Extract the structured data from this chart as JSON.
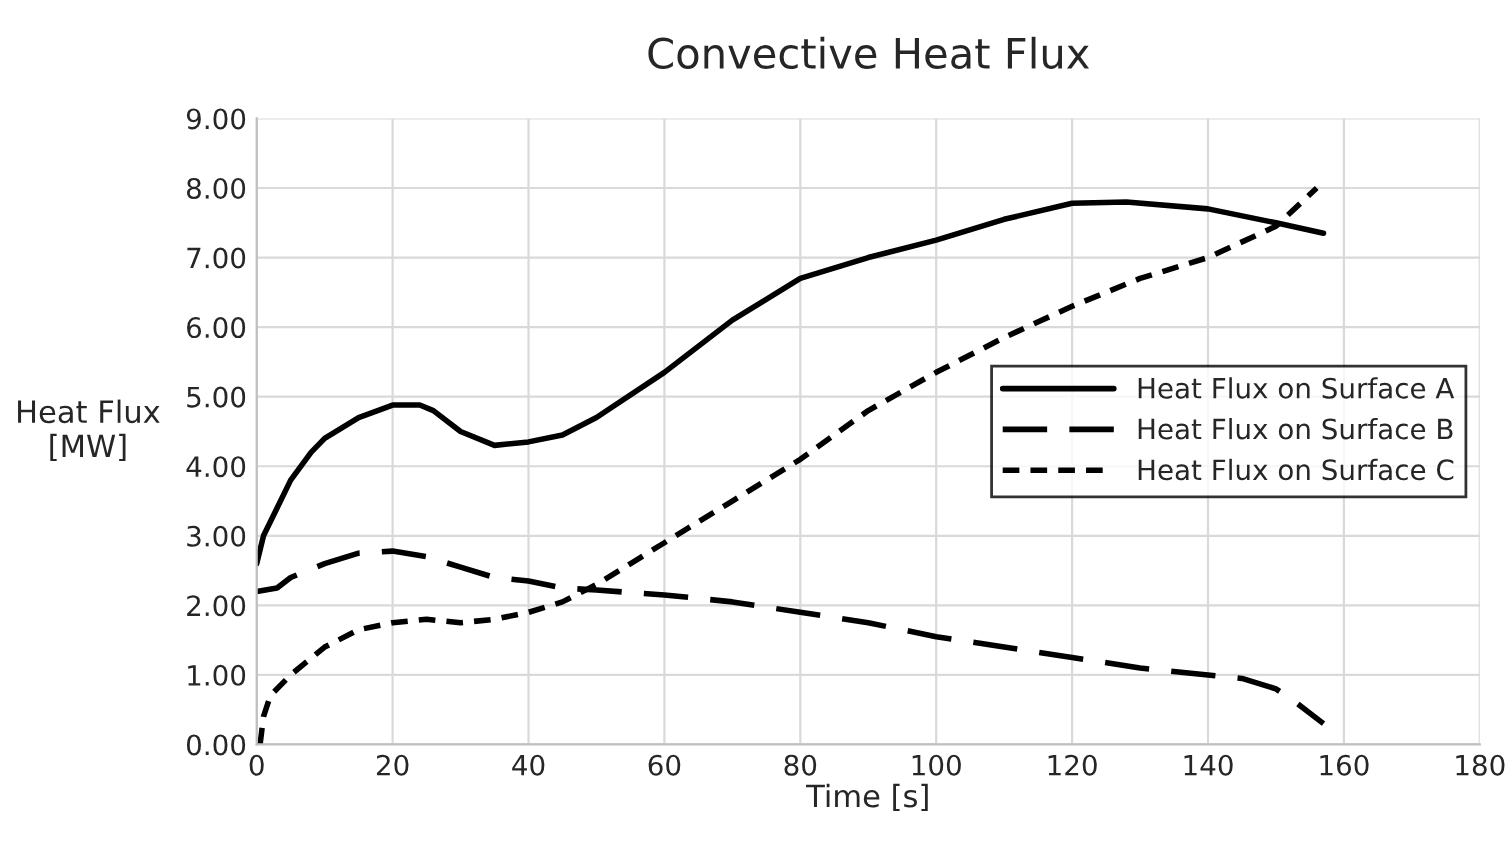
{
  "chart_data": {
    "type": "line",
    "title": "Convective Heat Flux",
    "xlabel": "Time [s]",
    "ylabel": "Heat Flux\n[MW]",
    "xlim": [
      0,
      180
    ],
    "xticks": [
      0,
      20,
      40,
      60,
      80,
      100,
      120,
      140,
      160,
      180
    ],
    "ylim": [
      0,
      9
    ],
    "yticks": [
      {
        "value": 0,
        "label": "0.00"
      },
      {
        "value": 1,
        "label": "1.00"
      },
      {
        "value": 2,
        "label": "2.00"
      },
      {
        "value": 3,
        "label": "3.00"
      },
      {
        "value": 4,
        "label": "4.00"
      },
      {
        "value": 5,
        "label": "5.00"
      },
      {
        "value": 6,
        "label": "6.00"
      },
      {
        "value": 7,
        "label": "7.00"
      },
      {
        "value": 8,
        "label": "8.00"
      },
      {
        "value": 9,
        "label": "9.00"
      }
    ],
    "grid": true,
    "legend": "right",
    "series": [
      {
        "name": "Heat Flux on Surface A",
        "color": "#000000",
        "line_style": "solid",
        "x": [
          0,
          1,
          3,
          5,
          8,
          10,
          15,
          20,
          24,
          26,
          30,
          35,
          40,
          45,
          50,
          60,
          70,
          80,
          90,
          100,
          110,
          120,
          128,
          140,
          150,
          157
        ],
        "values": [
          2.6,
          3.0,
          3.4,
          3.8,
          4.2,
          4.4,
          4.7,
          4.88,
          4.88,
          4.8,
          4.5,
          4.3,
          4.35,
          4.45,
          4.7,
          5.35,
          6.1,
          6.7,
          7.0,
          7.25,
          7.55,
          7.78,
          7.8,
          7.7,
          7.5,
          7.35
        ]
      },
      {
        "name": "Heat Flux on Surface B",
        "color": "#000000",
        "line_style": "dashed",
        "x": [
          0,
          3,
          5,
          10,
          15,
          20,
          25,
          30,
          35,
          40,
          45,
          50,
          60,
          70,
          80,
          90,
          100,
          110,
          120,
          130,
          140,
          145,
          150,
          153,
          157
        ],
        "values": [
          2.2,
          2.25,
          2.4,
          2.6,
          2.75,
          2.78,
          2.7,
          2.55,
          2.4,
          2.35,
          2.25,
          2.22,
          2.15,
          2.05,
          1.9,
          1.75,
          1.55,
          1.4,
          1.25,
          1.1,
          1.0,
          0.95,
          0.8,
          0.6,
          0.3
        ]
      },
      {
        "name": "Heat Flux on Surface C",
        "color": "#000000",
        "line_style": "dotted",
        "x": [
          0.5,
          1,
          2,
          5,
          10,
          15,
          20,
          25,
          30,
          35,
          40,
          45,
          50,
          60,
          70,
          80,
          90,
          100,
          110,
          120,
          130,
          140,
          150,
          156
        ],
        "values": [
          0,
          0.4,
          0.7,
          1.0,
          1.4,
          1.65,
          1.75,
          1.8,
          1.75,
          1.8,
          1.9,
          2.05,
          2.3,
          2.9,
          3.5,
          4.1,
          4.8,
          5.35,
          5.85,
          6.3,
          6.7,
          7.0,
          7.45,
          8.0
        ]
      }
    ]
  }
}
